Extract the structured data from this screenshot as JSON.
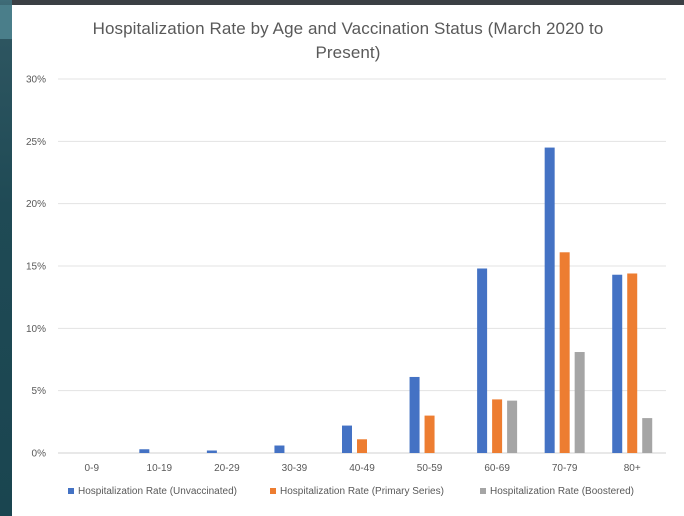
{
  "chart_data": {
    "type": "bar",
    "title": "Hospitalization Rate by Age and Vaccination Status (March 2020 to Present)",
    "title_lines": [
      "Hospitalization Rate by Age and Vaccination Status (March 2020 to",
      "Present)"
    ],
    "xlabel": "",
    "ylabel": "",
    "ylim": [
      0,
      30
    ],
    "y_ticks": [
      "0%",
      "5%",
      "10%",
      "15%",
      "20%",
      "25%",
      "30%"
    ],
    "y_tick_values": [
      0,
      5,
      10,
      15,
      20,
      25,
      30
    ],
    "grid": true,
    "legend_position": "bottom",
    "categories": [
      "0-9",
      "10-19",
      "20-29",
      "30-39",
      "40-49",
      "50-59",
      "60-69",
      "70-79",
      "80+"
    ],
    "series": [
      {
        "name": "Hospitalization Rate (Unvaccinated)",
        "color": "#4472c4",
        "values": [
          0,
          0.3,
          0.2,
          0.6,
          2.2,
          6.1,
          14.8,
          24.5,
          14.3
        ]
      },
      {
        "name": "Hospitalization Rate (Primary Series)",
        "color": "#ed7d31",
        "values": [
          0,
          0,
          0,
          0,
          1.1,
          3.0,
          4.3,
          16.1,
          14.4
        ]
      },
      {
        "name": "Hospitalization Rate (Boostered)",
        "color": "#a5a5a5",
        "values": [
          0,
          0,
          0,
          0,
          0,
          0,
          4.2,
          8.1,
          2.8
        ]
      }
    ]
  }
}
